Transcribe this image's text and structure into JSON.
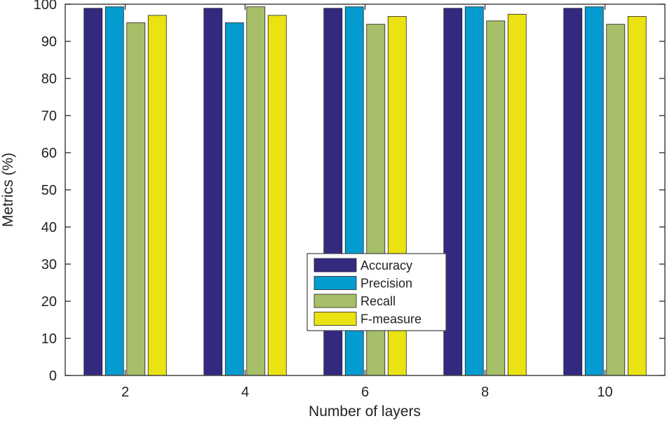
{
  "chart_data": {
    "type": "bar",
    "title": "",
    "xlabel": "Number of layers",
    "ylabel": "Metrics (%)",
    "categories": [
      "2",
      "4",
      "6",
      "8",
      "10"
    ],
    "ylim": [
      0,
      100
    ],
    "yticks": [
      "0",
      "10",
      "20",
      "30",
      "40",
      "50",
      "60",
      "70",
      "80",
      "90",
      "100"
    ],
    "grid": false,
    "legend_position": "center-bottom",
    "series": [
      {
        "name": "Accuracy",
        "color": "#332a80",
        "values": [
          98.9,
          98.9,
          98.9,
          98.9,
          98.9
        ]
      },
      {
        "name": "Precision",
        "color": "#049bd1",
        "values": [
          99.3,
          95.0,
          99.3,
          99.3,
          99.3
        ]
      },
      {
        "name": "Recall",
        "color": "#a6bf68",
        "values": [
          95.0,
          99.3,
          94.6,
          95.5,
          94.6
        ]
      },
      {
        "name": "F-measure",
        "color": "#ebe212",
        "values": [
          97.0,
          97.0,
          96.7,
          97.3,
          96.7
        ]
      }
    ]
  }
}
